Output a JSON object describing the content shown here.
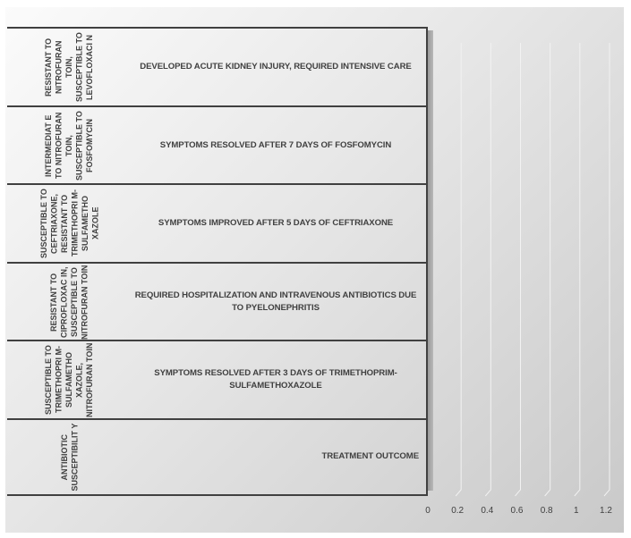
{
  "chart_data": {
    "type": "bar",
    "orientation": "horizontal",
    "three_d": true,
    "categories": [
      {
        "group": "RESISTANT TO NITROFURANTOIN, SUSCEPTIBLE TO LEVOFLOXACIN",
        "label": "DEVELOPED ACUTE KIDNEY INJURY, REQUIRED INTENSIVE CARE"
      },
      {
        "group": "INTERMEDIATE TO NITROFURANTOIN, SUSCEPTIBLE TO FOSFOMYCIN",
        "label": "SYMPTOMS RESOLVED AFTER 7 DAYS OF FOSFOMYCIN"
      },
      {
        "group": "SUSCEPTIBLE TO CEFTRIAXONE, RESISTANT TO TRIMETHOPRIM-SULFAMETHOXAZOLE",
        "label": "SYMPTOMS IMPROVED AFTER 5 DAYS OF CEFTRIAXONE"
      },
      {
        "group": "RESISTANT TO CIPROFLOXACIN, SUSCEPTIBLE TO NITROFURANTOIN",
        "label": "REQUIRED HOSPITALIZATION AND INTRAVENOUS ANTIBIOTICS DUE TO PYELONEPHRITIS"
      },
      {
        "group": "SUSCEPTIBLE TO TRIMETHOPRIM-SULFAMETHOXAZOLE, NITROFURANTOIN",
        "label": "SYMPTOMS RESOLVED AFTER 3 DAYS OF TRIMETHOPRIM-SULFAMETHOXAZOLE"
      },
      {
        "group": "ANTIBIOTIC SUSCEPTIBILITY",
        "label": "TREATMENT OUTCOME"
      }
    ],
    "outer_labels_display": [
      "RESISTANT TO NITROFURAN TOIN, SUSCEPTIBLE TO LEVOFLOXACI N",
      "INTERMEDIAT E TO NITROFURAN TOIN, SUSCEPTIBLE TO FOSFOMYCIN",
      "SUSCEPTIBLE TO CEFTRIAXONE, RESISTANT TO TRIMETHOPRI M- SULFAMETHO XAZOLE",
      "RESISTANT TO CIPROFLOXAC IN, SUSCEPTIBLE TO NITROFURAN TOIN",
      "SUSCEPTIBLE TO TRIMETHOPRI M- SULFAMETHO XAZOLE, NITROFURAN TOIN",
      "ANTIBIOTIC SUSCEPTIBILIT Y"
    ],
    "values": [
      0,
      0,
      0,
      0,
      0,
      0
    ],
    "xlim": [
      0,
      1.2
    ],
    "xticks": [
      "0",
      "0.2",
      "0.4",
      "0.6",
      "0.8",
      "1",
      "1.2"
    ],
    "grid": true,
    "legend": "none",
    "title": "",
    "xlabel": "",
    "ylabel": "",
    "colors": {
      "background_light": "#fbfbfb",
      "background_dark": "#c9c9c9",
      "text": "#404040",
      "gridline": "#f2f2f2"
    }
  }
}
